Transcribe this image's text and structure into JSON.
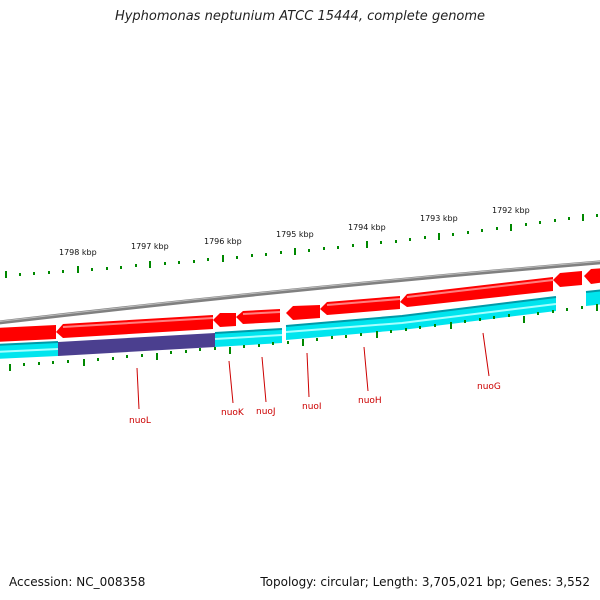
{
  "title": "Hyphomonas neptunium ATCC 15444, complete genome",
  "footer": {
    "accession": "Accession: NC_008358",
    "summary": "Topology: circular; Length: 3,705,021 bp; Genes: 3,552"
  },
  "colors": {
    "backbone": "#888888",
    "forward_feature": "#ff0000",
    "reverse_feature": "#00e5ee",
    "highlight_feature": "#4b3f8f",
    "tick": "#008800",
    "gene_label": "#cc0000"
  },
  "ruler": {
    "labels": [
      "1798 kbp",
      "1797 kbp",
      "1796 kbp",
      "1795 kbp",
      "1794 kbp",
      "1793 kbp",
      "1792 kbp"
    ]
  },
  "genes": [
    {
      "label": "nuoL"
    },
    {
      "label": "nuoK"
    },
    {
      "label": "nuoJ"
    },
    {
      "label": "nuoI"
    },
    {
      "label": "nuoH"
    },
    {
      "label": "nuoG"
    }
  ]
}
